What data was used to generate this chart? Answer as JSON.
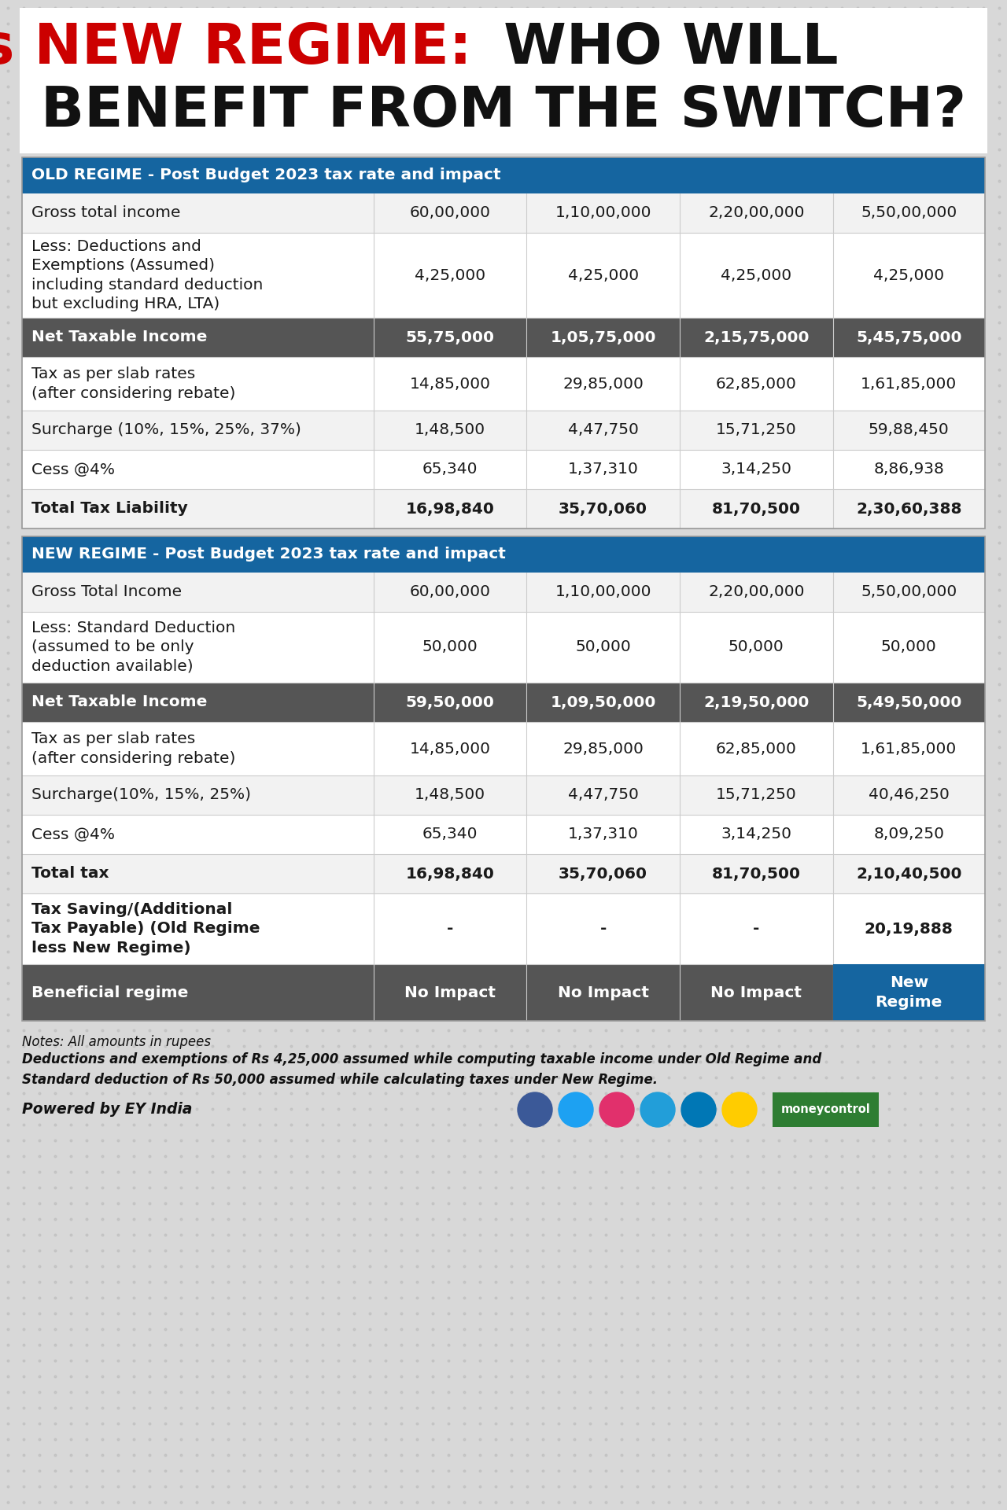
{
  "bg_color": "#d8d8d8",
  "title_red": "OLD Vs NEW REGIME:",
  "title_black_1": " WHO WILL",
  "title_black_2": "BENEFIT FROM THE SWITCH?",
  "header_blue": "#1565a0",
  "header_dark_gray": "#555555",
  "row_white": "#ffffff",
  "row_light_gray": "#f2f2f2",
  "text_color": "#1a1a1a",
  "old_regime_header": "OLD REGIME - Post Budget 2023 tax rate and impact",
  "new_regime_header": "NEW REGIME - Post Budget 2023 tax rate and impact",
  "old_rows": [
    {
      "label": "Gross total income",
      "values": [
        "60,00,000",
        "1,10,00,000",
        "2,20,00,000",
        "5,50,00,000"
      ],
      "bold": false,
      "highlight": false,
      "num_lines": 1
    },
    {
      "label": "Less: Deductions and\nExemptions (Assumed)\nincluding standard deduction\nbut excluding HRA, LTA)",
      "values": [
        "4,25,000",
        "4,25,000",
        "4,25,000",
        "4,25,000"
      ],
      "bold": false,
      "highlight": false,
      "num_lines": 4
    },
    {
      "label": "Net Taxable Income",
      "values": [
        "55,75,000",
        "1,05,75,000",
        "2,15,75,000",
        "5,45,75,000"
      ],
      "bold": true,
      "highlight": true,
      "num_lines": 1
    },
    {
      "label": "Tax as per slab rates\n(after considering rebate)",
      "values": [
        "14,85,000",
        "29,85,000",
        "62,85,000",
        "1,61,85,000"
      ],
      "bold": false,
      "highlight": false,
      "num_lines": 2
    },
    {
      "label": "Surcharge (10%, 15%, 25%, 37%)",
      "values": [
        "1,48,500",
        "4,47,750",
        "15,71,250",
        "59,88,450"
      ],
      "bold": false,
      "highlight": false,
      "num_lines": 1
    },
    {
      "label": "Cess @4%",
      "values": [
        "65,340",
        "1,37,310",
        "3,14,250",
        "8,86,938"
      ],
      "bold": false,
      "highlight": false,
      "num_lines": 1
    },
    {
      "label": "Total Tax Liability",
      "values": [
        "16,98,840",
        "35,70,060",
        "81,70,500",
        "2,30,60,388"
      ],
      "bold": true,
      "highlight": false,
      "num_lines": 1
    }
  ],
  "new_rows": [
    {
      "label": "Gross Total Income",
      "values": [
        "60,00,000",
        "1,10,00,000",
        "2,20,00,000",
        "5,50,00,000"
      ],
      "bold": false,
      "highlight": false,
      "num_lines": 1
    },
    {
      "label": "Less: Standard Deduction\n(assumed to be only\ndeduction available)",
      "values": [
        "50,000",
        "50,000",
        "50,000",
        "50,000"
      ],
      "bold": false,
      "highlight": false,
      "num_lines": 3
    },
    {
      "label": "Net Taxable Income",
      "values": [
        "59,50,000",
        "1,09,50,000",
        "2,19,50,000",
        "5,49,50,000"
      ],
      "bold": true,
      "highlight": true,
      "num_lines": 1
    },
    {
      "label": "Tax as per slab rates\n(after considering rebate)",
      "values": [
        "14,85,000",
        "29,85,000",
        "62,85,000",
        "1,61,85,000"
      ],
      "bold": false,
      "highlight": false,
      "num_lines": 2
    },
    {
      "label": "Surcharge(10%, 15%, 25%)",
      "values": [
        "1,48,500",
        "4,47,750",
        "15,71,250",
        "40,46,250"
      ],
      "bold": false,
      "highlight": false,
      "num_lines": 1
    },
    {
      "label": "Cess @4%",
      "values": [
        "65,340",
        "1,37,310",
        "3,14,250",
        "8,09,250"
      ],
      "bold": false,
      "highlight": false,
      "num_lines": 1
    },
    {
      "label": "Total tax",
      "values": [
        "16,98,840",
        "35,70,060",
        "81,70,500",
        "2,10,40,500"
      ],
      "bold": true,
      "highlight": false,
      "num_lines": 1
    },
    {
      "label": "Tax Saving/(Additional\nTax Payable) (Old Regime\nless New Regime)",
      "values": [
        "-",
        "-",
        "-",
        "20,19,888"
      ],
      "bold": true,
      "highlight": false,
      "num_lines": 3
    },
    {
      "label": "Beneficial regime",
      "values": [
        "No Impact",
        "No Impact",
        "No Impact",
        "New\nRegime"
      ],
      "bold": true,
      "highlight": true,
      "num_lines": 1,
      "last_col_blue": true
    }
  ],
  "notes_line1": "Notes: All amounts in rupees",
  "notes_line2": "Deductions and exemptions of Rs 4,25,000 assumed while computing taxable income under Old Regime and",
  "notes_line3": "Standard deduction of Rs 50,000 assumed while calculating taxes under New Regime.",
  "powered_by": "Powered by EY India",
  "icon_colors": [
    "#3b5998",
    "#1da1f2",
    "#e1306c",
    "#229ED9",
    "#0077b5",
    "#ffcc00"
  ],
  "mc_color": "#2e7d32"
}
